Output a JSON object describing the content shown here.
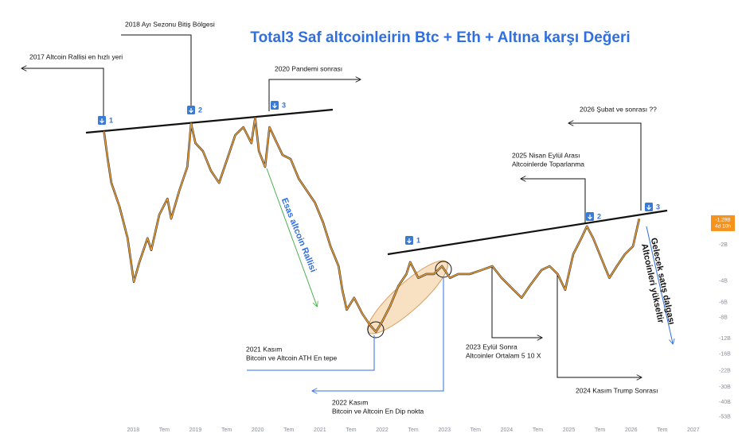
{
  "chart_data": {
    "type": "line",
    "title": "Total3 Saf altcoinleirin Btc + Eth + Altına karşı Değeri",
    "log_scale": true,
    "xlim": [
      2015.86,
      2027.18
    ],
    "ylim": [
      -62,
      -0.019
    ],
    "xticks": [
      2018,
      {
        "value": 2018.5,
        "label": "Tem"
      },
      2019,
      {
        "value": 2019.5,
        "label": "Tem"
      },
      2020,
      {
        "value": 2020.5,
        "label": "Tem"
      },
      2021,
      {
        "value": 2021.5,
        "label": "Tem"
      },
      2022,
      {
        "value": 2022.5,
        "label": "Tem"
      },
      2023,
      {
        "value": 2023.5,
        "label": "Tem"
      },
      2024,
      {
        "value": 2024.5,
        "label": "Tem"
      },
      2025,
      {
        "value": 2025.5,
        "label": "Tem"
      },
      2026,
      {
        "value": 2026.5,
        "label": "Tem"
      },
      2027
    ],
    "yticks": [
      {
        "value": -2,
        "label": "-2B"
      },
      {
        "value": -4,
        "label": "-4B"
      },
      {
        "value": -6,
        "label": "-6B"
      },
      {
        "value": -8,
        "label": "-8B"
      },
      {
        "value": -12,
        "label": "-12B"
      },
      {
        "value": -16,
        "label": "-16B"
      },
      {
        "value": -22,
        "label": "-22B"
      },
      {
        "value": -30,
        "label": "-30B"
      },
      {
        "value": -40,
        "label": "-40B"
      },
      {
        "value": -53,
        "label": "-53B"
      }
    ],
    "x": [
      2017.53,
      2017.59,
      2017.65,
      2017.78,
      2017.91,
      2018.01,
      2018.1,
      2018.23,
      2018.29,
      2018.42,
      2018.55,
      2018.61,
      2018.74,
      2018.87,
      2018.93,
      2019.0,
      2019.12,
      2019.25,
      2019.38,
      2019.51,
      2019.64,
      2019.77,
      2019.9,
      2019.96,
      2020.02,
      2020.12,
      2020.19,
      2020.28,
      2020.4,
      2020.53,
      2020.66,
      2020.79,
      2020.92,
      2021.05,
      2021.17,
      2021.3,
      2021.36,
      2021.43,
      2021.55,
      2021.68,
      2021.81,
      2021.9,
      2022.0,
      2022.13,
      2022.26,
      2022.39,
      2022.45,
      2022.58,
      2022.71,
      2022.83,
      2022.96,
      2023.09,
      2023.22,
      2023.41,
      2023.6,
      2023.77,
      2023.92,
      2024.11,
      2024.24,
      2024.37,
      2024.56,
      2024.69,
      2024.82,
      2024.94,
      2025.07,
      2025.2,
      2025.29,
      2025.39,
      2025.52,
      2025.65,
      2025.77,
      2025.9,
      2026.03,
      2026.13
    ],
    "series": [
      {
        "color": "#f0a030",
        "values": [
          -0.231,
          -0.392,
          -0.617,
          -0.969,
          -1.77,
          -4.06,
          -2.79,
          -1.77,
          -2.22,
          -1.13,
          -0.834,
          -1.22,
          -0.716,
          -0.455,
          -0.199,
          -0.29,
          -0.337,
          -0.491,
          -0.617,
          -0.392,
          -0.249,
          -0.214,
          -0.29,
          -0.179,
          -0.337,
          -0.455,
          -0.214,
          -0.269,
          -0.363,
          -0.392,
          -0.571,
          -0.716,
          -0.898,
          -1.31,
          -2.06,
          -3.01,
          -4.73,
          -6.9,
          -5.5,
          -7.43,
          -9.33,
          -10.5,
          -8.65,
          -6.4,
          -4.39,
          -3.5,
          -2.79,
          -3.77,
          -3.5,
          -3.5,
          -3.01,
          -3.77,
          -3.5,
          -3.5,
          -3.24,
          -3.01,
          -3.77,
          -4.73,
          -5.5,
          -4.39,
          -3.24,
          -3.01,
          -3.5,
          -4.73,
          -2.4,
          -1.77,
          -1.41,
          -1.77,
          -2.58,
          -3.77,
          -3.01,
          -2.4,
          -2.06,
          -1.22
        ]
      }
    ],
    "price_tag": {
      "value": -1.29,
      "label": "-1,29B",
      "color": "#f7931a"
    },
    "countdown": "4d 10h",
    "markers": [
      "1",
      "2",
      "3",
      "1",
      "2",
      "3"
    ],
    "annotations": [
      {
        "lines": [
          "2018 Ayı Sezonu Bitiş Bölgesi"
        ],
        "color": "#111111"
      },
      {
        "lines": [
          "2017 Altcoin Rallisi en hızlı yeri"
        ],
        "color": "#111111"
      },
      {
        "lines": [
          "2020 Pandemi sonrası"
        ],
        "color": "#111111"
      },
      {
        "lines": [
          "2026 Şubat ve sonrası ??"
        ],
        "color": "#111111"
      },
      {
        "lines": [
          "2025 Nisan Eylül Arası",
          "Altcoinlerde Toparlanma"
        ],
        "color": "#111111"
      },
      {
        "lines": [
          "2021 Kasım",
          "Bitcoin ve Altcoin ATH En tepe"
        ],
        "color": "#e53935"
      },
      {
        "lines": [
          "2022 Kasım",
          "Bitcoin ve Altcoin En Dip nokta"
        ],
        "color": "#e53935"
      },
      {
        "lines": [
          "2023 Eylül Sonra",
          "Altcoinler Ortalam 5 10 X"
        ],
        "color": "#111111"
      },
      {
        "lines": [
          "2024 Kasım Trump Sonrası"
        ],
        "color": "#111111"
      }
    ],
    "rally_label": "Esas altcoin Rallisi",
    "future_label": [
      "Gelecek satış dalgası",
      "Altcoinleri yükseltir"
    ]
  }
}
